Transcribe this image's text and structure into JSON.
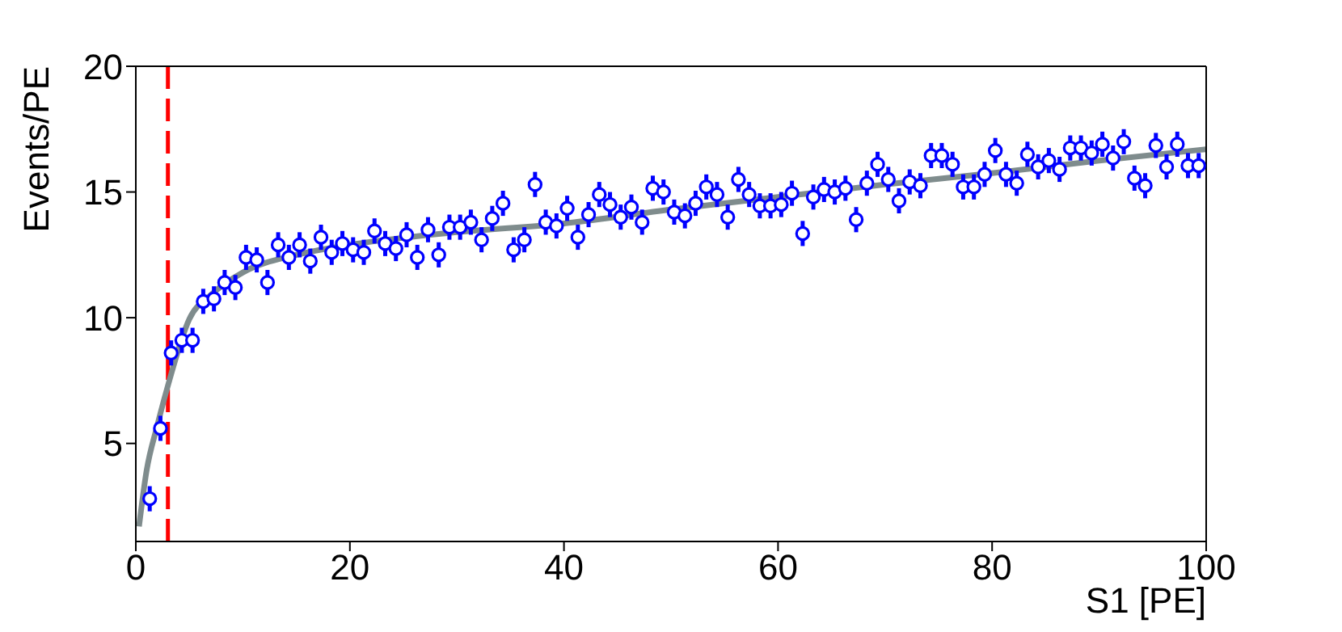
{
  "chart_data": {
    "type": "scatter",
    "xlabel": "S1 [PE]",
    "ylabel": "Events/PE",
    "xlim": [
      0,
      100
    ],
    "ylim": [
      1.1,
      20
    ],
    "xticks": [
      0,
      20,
      40,
      60,
      80,
      100
    ],
    "yticks": [
      5,
      10,
      15,
      20
    ],
    "series": [
      {
        "color": "#0000ff",
        "marker": "circle",
        "x": [
          1.3,
          2.3,
          3.3,
          4.3,
          5.3,
          6.3,
          7.3,
          8.3,
          9.3,
          10.3,
          11.3,
          12.3,
          13.3,
          14.3,
          15.3,
          16.3,
          17.3,
          18.3,
          19.3,
          20.3,
          21.3,
          22.3,
          23.3,
          24.3,
          25.3,
          26.3,
          27.3,
          28.3,
          29.3,
          30.3,
          31.3,
          32.3,
          33.3,
          34.3,
          35.3,
          36.3,
          37.3,
          38.3,
          39.3,
          40.3,
          41.3,
          42.3,
          43.3,
          44.3,
          45.3,
          46.3,
          47.3,
          48.3,
          49.3,
          50.3,
          51.3,
          52.3,
          53.3,
          54.3,
          55.3,
          56.3,
          57.3,
          58.3,
          59.3,
          60.3,
          61.3,
          62.3,
          63.3,
          64.3,
          65.3,
          66.3,
          67.3,
          68.3,
          69.3,
          70.3,
          71.3,
          72.3,
          73.3,
          74.3,
          75.3,
          76.3,
          77.3,
          78.3,
          79.3,
          80.3,
          81.3,
          82.3,
          83.3,
          84.3,
          85.3,
          86.3,
          87.3,
          88.3,
          89.3,
          90.3,
          91.3,
          92.3,
          93.3,
          94.3,
          95.3,
          96.3,
          97.3,
          98.3,
          99.3
        ],
        "values": [
          2.8,
          5.6,
          8.6,
          9.1,
          9.1,
          10.65,
          10.75,
          11.4,
          11.2,
          12.4,
          12.3,
          11.4,
          12.9,
          12.4,
          12.9,
          12.25,
          13.2,
          12.6,
          12.95,
          12.7,
          12.6,
          13.45,
          12.95,
          12.75,
          13.3,
          12.4,
          13.5,
          12.5,
          13.6,
          13.6,
          13.8,
          13.1,
          13.95,
          14.55,
          12.7,
          13.1,
          15.3,
          13.8,
          13.65,
          14.35,
          13.2,
          14.1,
          14.9,
          14.5,
          14.0,
          14.4,
          13.8,
          15.15,
          15.0,
          14.2,
          14.05,
          14.55,
          15.2,
          14.9,
          14.0,
          15.5,
          14.9,
          14.45,
          14.45,
          14.5,
          14.95,
          13.35,
          14.8,
          15.1,
          15.0,
          15.15,
          13.9,
          15.35,
          16.1,
          15.5,
          14.65,
          15.4,
          15.25,
          16.45,
          16.45,
          16.1,
          15.2,
          15.2,
          15.7,
          16.65,
          15.7,
          15.35,
          16.5,
          16.0,
          16.25,
          15.9,
          16.75,
          16.75,
          16.55,
          16.9,
          16.35,
          17.0,
          15.55,
          15.25,
          16.85,
          16.0,
          16.9,
          16.05,
          16.05
        ],
        "errors": [
          0.5,
          0.5,
          0.5,
          0.5,
          0.5,
          0.5,
          0.5,
          0.5,
          0.5,
          0.5,
          0.5,
          0.5,
          0.5,
          0.5,
          0.5,
          0.5,
          0.5,
          0.5,
          0.5,
          0.5,
          0.5,
          0.5,
          0.5,
          0.5,
          0.5,
          0.5,
          0.5,
          0.5,
          0.5,
          0.5,
          0.5,
          0.5,
          0.5,
          0.5,
          0.5,
          0.5,
          0.5,
          0.5,
          0.5,
          0.5,
          0.5,
          0.5,
          0.5,
          0.5,
          0.5,
          0.5,
          0.5,
          0.5,
          0.5,
          0.5,
          0.5,
          0.5,
          0.5,
          0.5,
          0.5,
          0.5,
          0.5,
          0.5,
          0.5,
          0.5,
          0.5,
          0.5,
          0.5,
          0.5,
          0.5,
          0.5,
          0.5,
          0.5,
          0.5,
          0.5,
          0.5,
          0.5,
          0.5,
          0.5,
          0.5,
          0.5,
          0.5,
          0.5,
          0.5,
          0.5,
          0.5,
          0.5,
          0.5,
          0.5,
          0.5,
          0.5,
          0.5,
          0.5,
          0.5,
          0.5,
          0.5,
          0.5,
          0.5,
          0.5,
          0.5,
          0.5,
          0.5,
          0.5,
          0.5
        ]
      },
      {
        "type": "line",
        "marker": "none",
        "color": "#7f8c8d",
        "x": [
          0.3,
          1,
          2,
          3,
          5,
          7,
          10,
          15,
          20,
          30,
          40,
          50,
          60,
          70,
          80,
          90,
          100
        ],
        "values": [
          1.7,
          3.9,
          5.7,
          7.3,
          9.95,
          10.9,
          11.8,
          12.5,
          12.9,
          13.4,
          13.75,
          14.3,
          14.8,
          15.3,
          15.75,
          16.25,
          16.7
        ]
      }
    ],
    "ref_lines": [
      {
        "axis": "x",
        "value": 3,
        "color": "#ff0000",
        "line_style": "dashed"
      }
    ]
  }
}
